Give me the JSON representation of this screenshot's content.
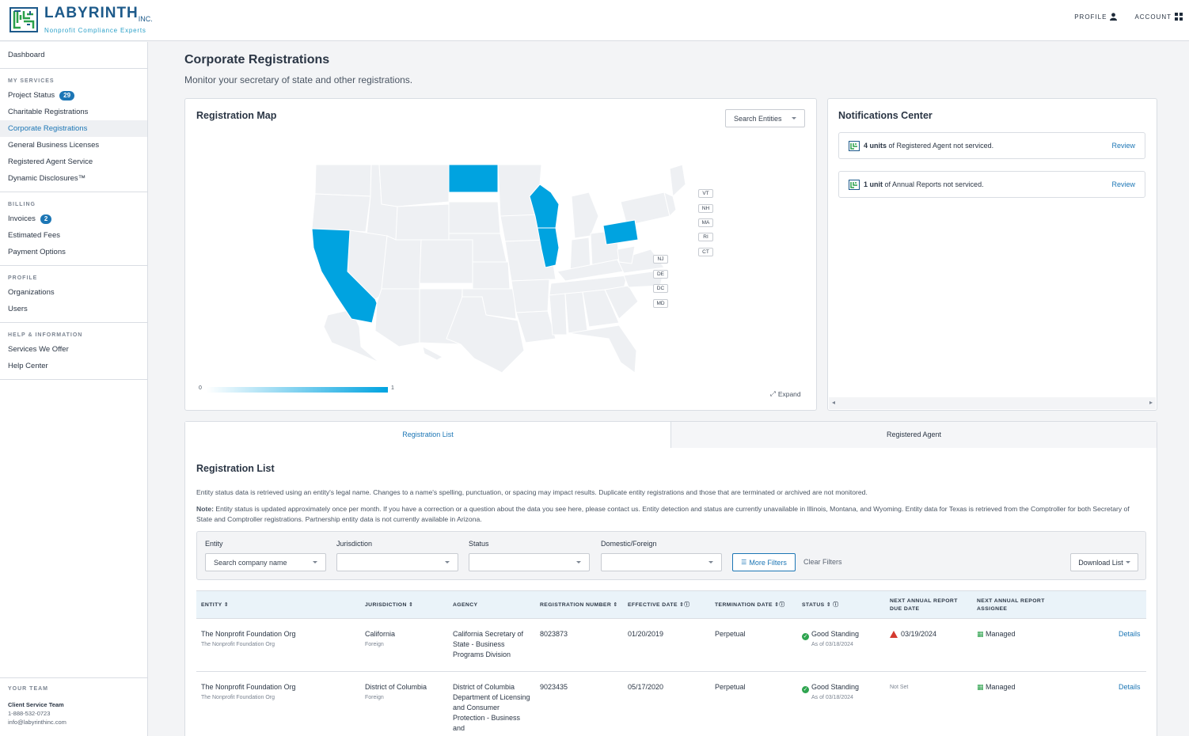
{
  "brand": {
    "name": "LABYRINTH",
    "suffix": "INC.",
    "tagline": "Nonprofit Compliance Experts"
  },
  "topnav": {
    "profile": "PROFILE",
    "account": "ACCOUNT"
  },
  "sidebar": {
    "dashboard": "Dashboard",
    "my_services": {
      "heading": "MY SERVICES",
      "items": [
        {
          "label": "Project Status",
          "badge": "29"
        },
        {
          "label": "Charitable Registrations"
        },
        {
          "label": "Corporate Registrations",
          "active": true
        },
        {
          "label": "General Business Licenses"
        },
        {
          "label": "Registered Agent Service"
        },
        {
          "label": "Dynamic Disclosures™"
        }
      ]
    },
    "billing": {
      "heading": "BILLING",
      "items": [
        {
          "label": "Invoices",
          "badge": "2"
        },
        {
          "label": "Estimated Fees"
        },
        {
          "label": "Payment Options"
        }
      ]
    },
    "profile": {
      "heading": "PROFILE",
      "items": [
        {
          "label": "Organizations"
        },
        {
          "label": "Users"
        }
      ]
    },
    "help": {
      "heading": "HELP & INFORMATION",
      "items": [
        {
          "label": "Services We Offer"
        },
        {
          "label": "Help Center"
        }
      ]
    },
    "team": {
      "heading": "YOUR TEAM",
      "name": "Client Service Team",
      "phone": "1-888-532-0723",
      "email": "info@labyrinthinc.com"
    }
  },
  "page": {
    "title": "Corporate Registrations",
    "subtitle": "Monitor your secretary of state and other registrations."
  },
  "map": {
    "title": "Registration Map",
    "search_placeholder": "Search Entities",
    "scale_min": "0",
    "scale_max": "1",
    "expand": "Expand",
    "highlight_color": "#00a3e0",
    "registered_states": [
      "CA",
      "ND",
      "WI",
      "IL",
      "PA"
    ],
    "small_state_labels": [
      "VT",
      "NH",
      "MA",
      "RI",
      "CT",
      "NJ",
      "DE",
      "DC",
      "MD"
    ]
  },
  "notifications": {
    "title": "Notifications Center",
    "items": [
      {
        "bold": "4 units",
        "text": " of Registered Agent not serviced.",
        "action": "Review"
      },
      {
        "bold": "1 unit",
        "text": " of Annual Reports not serviced.",
        "action": "Review"
      }
    ]
  },
  "tabs": {
    "list": "Registration List",
    "agent": "Registered Agent"
  },
  "list": {
    "title": "Registration List",
    "info1": "Entity status data is retrieved using an entity's legal name. Changes to a name's spelling, punctuation, or spacing may impact results. Duplicate entity registrations and those that are terminated or archived are not monitored.",
    "note_label": "Note:",
    "note": " Entity status is updated approximately once per month. If you have a correction or a question about the data you see here, please contact us. Entity detection and status are currently unavailable in Illinois, Montana, and Wyoming. Entity data for Texas is retrieved from the Comptroller for both Secretary of State and Comptroller registrations. Partnership entity data is not currently available in Arizona.",
    "filters": {
      "entity_label": "Entity",
      "entity_placeholder": "Search company name",
      "jurisdiction_label": "Jurisdiction",
      "status_label": "Status",
      "domestic_label": "Domestic/Foreign",
      "more": "More Filters",
      "clear": "Clear Filters",
      "download": "Download List"
    },
    "columns": [
      "ENTITY",
      "JURISDICTION",
      "AGENCY",
      "REGISTRATION NUMBER",
      "EFFECTIVE DATE",
      "TERMINATION DATE",
      "STATUS",
      "NEXT ANNUAL REPORT DUE DATE",
      "NEXT ANNUAL REPORT ASSIGNEE"
    ],
    "rows": [
      {
        "entity": "The Nonprofit Foundation Org",
        "entity_sub": "The Nonprofit Foundation Org",
        "jurisdiction": "California",
        "jur_sub": "Foreign",
        "agency": "California Secretary of State - Business Programs Division",
        "reg": "8023873",
        "effective": "01/20/2019",
        "termination": "Perpetual",
        "status": "Good Standing",
        "status_sub": "As of 03/18/2024",
        "due": "03/19/2024",
        "due_warn": true,
        "assignee": "Managed",
        "action": "Details"
      },
      {
        "entity": "The Nonprofit Foundation Org",
        "entity_sub": "The Nonprofit Foundation Org",
        "jurisdiction": "District of Columbia",
        "jur_sub": "Foreign",
        "agency": "District of Columbia Department of Licensing and Consumer Protection - Business and",
        "reg": "9023435",
        "effective": "05/17/2020",
        "termination": "Perpetual",
        "status": "Good Standing",
        "status_sub": "As of 03/18/2024",
        "due": "Not Set",
        "due_warn": false,
        "assignee": "Managed",
        "action": "Details"
      }
    ]
  }
}
